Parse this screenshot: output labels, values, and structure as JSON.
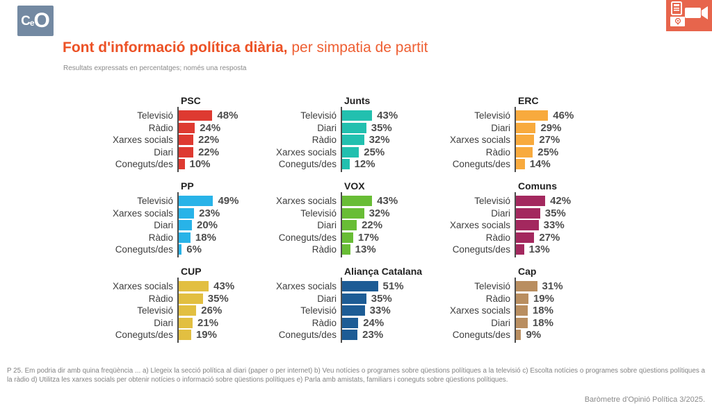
{
  "header": {
    "logo_text": "CeO",
    "title_bold": "Font d'informació política diària,",
    "title_rest": " per simpatia de partit",
    "subtitle": "Resultats expressats en percentatges; només una resposta",
    "accent_color": "#ec5226",
    "logo_bg_color": "#7389a2",
    "media_tile_color": "#e7654c"
  },
  "chart_data": {
    "type": "bar",
    "orientation": "horizontal",
    "unit": "%",
    "value_range": [
      0,
      55
    ],
    "grid": false,
    "legend": "none",
    "panels": [
      {
        "party": "PSC",
        "color": "#de3a31",
        "items": [
          {
            "label": "Televisió",
            "value": 48
          },
          {
            "label": "Ràdio",
            "value": 24
          },
          {
            "label": "Xarxes socials",
            "value": 22
          },
          {
            "label": "Diari",
            "value": 22
          },
          {
            "label": "Coneguts/des",
            "value": 10
          }
        ]
      },
      {
        "party": "Junts",
        "color": "#22c0af",
        "items": [
          {
            "label": "Televisió",
            "value": 43
          },
          {
            "label": "Diari",
            "value": 35
          },
          {
            "label": "Ràdio",
            "value": 32
          },
          {
            "label": "Xarxes socials",
            "value": 25
          },
          {
            "label": "Coneguts/des",
            "value": 12
          }
        ]
      },
      {
        "party": "ERC",
        "color": "#f8aa3d",
        "items": [
          {
            "label": "Televisió",
            "value": 46
          },
          {
            "label": "Diari",
            "value": 29
          },
          {
            "label": "Xarxes socials",
            "value": 27
          },
          {
            "label": "Ràdio",
            "value": 25
          },
          {
            "label": "Coneguts/des",
            "value": 14
          }
        ]
      },
      {
        "party": "PP",
        "color": "#28b3e8",
        "items": [
          {
            "label": "Televisió",
            "value": 49
          },
          {
            "label": "Xarxes socials",
            "value": 23
          },
          {
            "label": "Diari",
            "value": 20
          },
          {
            "label": "Ràdio",
            "value": 18
          },
          {
            "label": "Coneguts/des",
            "value": 6
          }
        ]
      },
      {
        "party": "VOX",
        "color": "#68bd35",
        "items": [
          {
            "label": "Xarxes socials",
            "value": 43
          },
          {
            "label": "Televisió",
            "value": 32
          },
          {
            "label": "Diari",
            "value": 22
          },
          {
            "label": "Coneguts/des",
            "value": 17
          },
          {
            "label": "Ràdio",
            "value": 13
          }
        ]
      },
      {
        "party": "Comuns",
        "color": "#a3285e",
        "items": [
          {
            "label": "Televisió",
            "value": 42
          },
          {
            "label": "Diari",
            "value": 35
          },
          {
            "label": "Xarxes socials",
            "value": 33
          },
          {
            "label": "Ràdio",
            "value": 27
          },
          {
            "label": "Coneguts/des",
            "value": 13
          }
        ]
      },
      {
        "party": "CUP",
        "color": "#e2bf41",
        "items": [
          {
            "label": "Xarxes socials",
            "value": 43
          },
          {
            "label": "Ràdio",
            "value": 35
          },
          {
            "label": "Televisió",
            "value": 26
          },
          {
            "label": "Diari",
            "value": 21
          },
          {
            "label": "Coneguts/des",
            "value": 19
          }
        ]
      },
      {
        "party": "Aliança Catalana",
        "color": "#1d5c95",
        "items": [
          {
            "label": "Xarxes socials",
            "value": 51
          },
          {
            "label": "Diari",
            "value": 35
          },
          {
            "label": "Televisió",
            "value": 33
          },
          {
            "label": "Ràdio",
            "value": 24
          },
          {
            "label": "Coneguts/des",
            "value": 23
          }
        ]
      },
      {
        "party": "Cap",
        "color": "#b98e60",
        "items": [
          {
            "label": "Televisió",
            "value": 31
          },
          {
            "label": "Ràdio",
            "value": 19
          },
          {
            "label": "Xarxes socials",
            "value": 18
          },
          {
            "label": "Diari",
            "value": 18
          },
          {
            "label": "Coneguts/des",
            "value": 9
          }
        ]
      }
    ]
  },
  "footer": {
    "question": "P 25. Em podria dir amb quina freqüència ... a) Llegeix la secció política al diari (paper o per internet) b) Veu notícies o programes sobre qüestions polítiques a la televisió c) Escolta notícies o programes sobre qüestions polítiques a la ràdio d) Utilitza les xarxes socials per obtenir notícies o informació sobre qüestions polítiques e) Parla amb amistats, familiars i coneguts sobre qüestions polítiques.",
    "credit": "Baròmetre d'Opinió Política 3/2025."
  }
}
